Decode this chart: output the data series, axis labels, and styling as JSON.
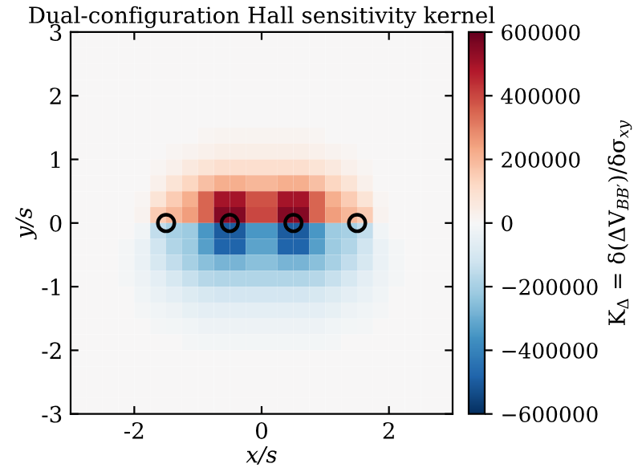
{
  "chart_data": {
    "type": "heatmap",
    "title": "Dual-configuration Hall sensitivity kernel",
    "xlabel": "x/s",
    "ylabel": "y/s",
    "clabel": "K$_{Δ}$ = δ(ΔV$_{BB′}$)/δσ$_{xy}$",
    "xlim": [
      -3,
      3
    ],
    "ylim": [
      -3,
      3
    ],
    "xticks": [
      -2,
      0,
      2
    ],
    "yticks": [
      -3,
      -2,
      -1,
      0,
      1,
      2,
      3
    ],
    "clim": [
      -600000,
      600000
    ],
    "cticks": [
      {
        "value": -600000,
        "label": "−600000"
      },
      {
        "value": -400000,
        "label": "−400000"
      },
      {
        "value": -200000,
        "label": "−200000"
      },
      0,
      200000,
      400000,
      600000
    ],
    "cells": [
      [
        0,
        0,
        0,
        0,
        0,
        0,
        0,
        0,
        0,
        0,
        0,
        0,
        0,
        0,
        0,
        0,
        0,
        0,
        0,
        0,
        0,
        0,
        0,
        0
      ],
      [
        0,
        0,
        0,
        0,
        0,
        0,
        0,
        0,
        0,
        0,
        0,
        0,
        0,
        0,
        0,
        0,
        0,
        0,
        0,
        0,
        0,
        0,
        0,
        0
      ],
      [
        0,
        0,
        0,
        0,
        0,
        0,
        0,
        0,
        0,
        0,
        0,
        0,
        0,
        0,
        0,
        0,
        0,
        0,
        0,
        0,
        0,
        0,
        0,
        0
      ],
      [
        0,
        0,
        0,
        0,
        0,
        0,
        0,
        0,
        0,
        0,
        0,
        0,
        0,
        0,
        0,
        0,
        0,
        0,
        0,
        0,
        0,
        0,
        0,
        0
      ],
      [
        0,
        0,
        0,
        0,
        0,
        0,
        0,
        0,
        0,
        0,
        0,
        0,
        0,
        0,
        0,
        0,
        0,
        0,
        0,
        0,
        0,
        0,
        0,
        0
      ],
      [
        0,
        0,
        0,
        0,
        0,
        0,
        0,
        0,
        0,
        0,
        0,
        0,
        0,
        0,
        0,
        0,
        0,
        0,
        0,
        0,
        0,
        0,
        0,
        0
      ],
      [
        0,
        0,
        0,
        0,
        0,
        0,
        0,
        0,
        10000,
        15000,
        15000,
        15000,
        15000,
        15000,
        15000,
        10000,
        0,
        0,
        0,
        0,
        0,
        0,
        0,
        0
      ],
      [
        0,
        0,
        0,
        0,
        0,
        0,
        10000,
        20000,
        30000,
        40000,
        40000,
        40000,
        40000,
        40000,
        40000,
        30000,
        20000,
        10000,
        0,
        0,
        0,
        0,
        0,
        0
      ],
      [
        0,
        0,
        0,
        0,
        0,
        10000,
        30000,
        60000,
        80000,
        100000,
        100000,
        100000,
        100000,
        100000,
        100000,
        80000,
        60000,
        30000,
        10000,
        0,
        0,
        0,
        0,
        0
      ],
      [
        0,
        0,
        0,
        0,
        0,
        30000,
        80000,
        130000,
        180000,
        220000,
        220000,
        200000,
        200000,
        220000,
        220000,
        180000,
        130000,
        80000,
        30000,
        0,
        0,
        0,
        0,
        0
      ],
      [
        0,
        0,
        0,
        0,
        10000,
        80000,
        150000,
        220000,
        350000,
        500000,
        500000,
        380000,
        380000,
        500000,
        500000,
        350000,
        220000,
        150000,
        80000,
        10000,
        0,
        0,
        0,
        0
      ],
      [
        0,
        0,
        0,
        0,
        20000,
        150000,
        200000,
        250000,
        350000,
        550000,
        550000,
        400000,
        400000,
        550000,
        550000,
        350000,
        250000,
        200000,
        150000,
        20000,
        0,
        0,
        0,
        0
      ],
      [
        0,
        0,
        0,
        0,
        -20000,
        -150000,
        -200000,
        -220000,
        -350000,
        -500000,
        -500000,
        -350000,
        -350000,
        -500000,
        -500000,
        -350000,
        -220000,
        -200000,
        -150000,
        -20000,
        0,
        0,
        0,
        0
      ],
      [
        0,
        0,
        0,
        -10000,
        -40000,
        -120000,
        -180000,
        -220000,
        -330000,
        -480000,
        -480000,
        -320000,
        -320000,
        -480000,
        -480000,
        -330000,
        -220000,
        -180000,
        -120000,
        -40000,
        -10000,
        0,
        0,
        0
      ],
      [
        0,
        0,
        0,
        -10000,
        -40000,
        -100000,
        -150000,
        -200000,
        -250000,
        -280000,
        -280000,
        -250000,
        -250000,
        -280000,
        -280000,
        -250000,
        -200000,
        -150000,
        -100000,
        -40000,
        -10000,
        0,
        0,
        0
      ],
      [
        0,
        0,
        0,
        -10000,
        -30000,
        -60000,
        -100000,
        -140000,
        -170000,
        -180000,
        -180000,
        -180000,
        -180000,
        -180000,
        -180000,
        -170000,
        -140000,
        -100000,
        -60000,
        -30000,
        -10000,
        0,
        0,
        0
      ],
      [
        0,
        0,
        0,
        0,
        -20000,
        -40000,
        -60000,
        -80000,
        -100000,
        -110000,
        -110000,
        -110000,
        -110000,
        -110000,
        -110000,
        -100000,
        -80000,
        -60000,
        -40000,
        -20000,
        0,
        0,
        0,
        0
      ],
      [
        0,
        0,
        0,
        0,
        -10000,
        -20000,
        -30000,
        -50000,
        -60000,
        -60000,
        -60000,
        -60000,
        -60000,
        -60000,
        -60000,
        -60000,
        -50000,
        -30000,
        -20000,
        -10000,
        0,
        0,
        0,
        0
      ],
      [
        0,
        0,
        0,
        0,
        0,
        -10000,
        -15000,
        -20000,
        -30000,
        -30000,
        -30000,
        -30000,
        -30000,
        -30000,
        -30000,
        -30000,
        -20000,
        -15000,
        -10000,
        0,
        0,
        0,
        0,
        0
      ],
      [
        0,
        0,
        0,
        0,
        0,
        0,
        0,
        -10000,
        -15000,
        -15000,
        -15000,
        -15000,
        -15000,
        -15000,
        -15000,
        -15000,
        -10000,
        0,
        0,
        0,
        0,
        0,
        0,
        0
      ],
      [
        0,
        0,
        0,
        0,
        0,
        0,
        0,
        0,
        0,
        0,
        0,
        0,
        0,
        0,
        0,
        0,
        0,
        0,
        0,
        0,
        0,
        0,
        0,
        0
      ],
      [
        0,
        0,
        0,
        0,
        0,
        0,
        0,
        0,
        0,
        0,
        0,
        0,
        0,
        0,
        0,
        0,
        0,
        0,
        0,
        0,
        0,
        0,
        0,
        0
      ],
      [
        0,
        0,
        0,
        0,
        0,
        0,
        0,
        0,
        0,
        0,
        0,
        0,
        0,
        0,
        0,
        0,
        0,
        0,
        0,
        0,
        0,
        0,
        0,
        0
      ],
      [
        0,
        0,
        0,
        0,
        0,
        0,
        0,
        0,
        0,
        0,
        0,
        0,
        0,
        0,
        0,
        0,
        0,
        0,
        0,
        0,
        0,
        0,
        0,
        0
      ]
    ],
    "marker": "circle",
    "series": [
      {
        "type": "scatter",
        "color": "#000000",
        "x": [
          -1.5,
          -0.5,
          0.5,
          1.5
        ],
        "values": [
          0,
          0,
          0,
          0
        ]
      }
    ]
  }
}
